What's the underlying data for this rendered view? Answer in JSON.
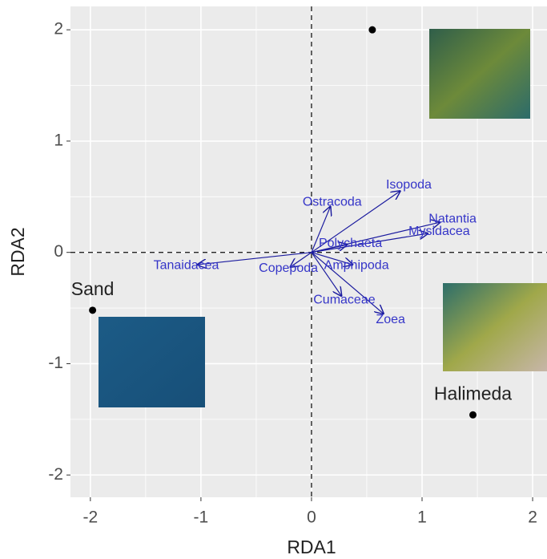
{
  "chart_data": {
    "type": "biplot",
    "x_label": "RDA1",
    "y_label": "RDA2",
    "xlim": [
      -2.18,
      2.13
    ],
    "ylim": [
      -2.2,
      2.21
    ],
    "xticks": [
      -2,
      -1,
      0,
      1,
      2
    ],
    "yticks": [
      -2,
      -1,
      0,
      1,
      2
    ],
    "grid": true,
    "sites": [
      {
        "label": "Sand",
        "x": -1.98,
        "y": -0.52
      },
      {
        "label": "Halimeda",
        "x": 1.46,
        "y": -1.46
      },
      {
        "x": 0.55,
        "y": 2.0
      }
    ],
    "site_color": "#000000",
    "species_color": "#1a1a9e",
    "species": [
      {
        "name": "Isopoda",
        "x": 0.8,
        "y": 0.55
      },
      {
        "name": "Ostracoda",
        "x": 0.17,
        "y": 0.41
      },
      {
        "name": "Natantia",
        "x": 1.16,
        "y": 0.27
      },
      {
        "name": "Mysidacea",
        "x": 1.05,
        "y": 0.17
      },
      {
        "name": "Polychaeta",
        "x": 0.32,
        "y": 0.07
      },
      {
        "name": "Tanaidacea",
        "x": -1.03,
        "y": -0.11
      },
      {
        "name": "Copepoda",
        "x": -0.19,
        "y": -0.13
      },
      {
        "name": "Amphipoda",
        "x": 0.37,
        "y": -0.11
      },
      {
        "name": "Cumaceae",
        "x": 0.27,
        "y": -0.39
      },
      {
        "name": "Zoea",
        "x": 0.65,
        "y": -0.55
      }
    ]
  }
}
